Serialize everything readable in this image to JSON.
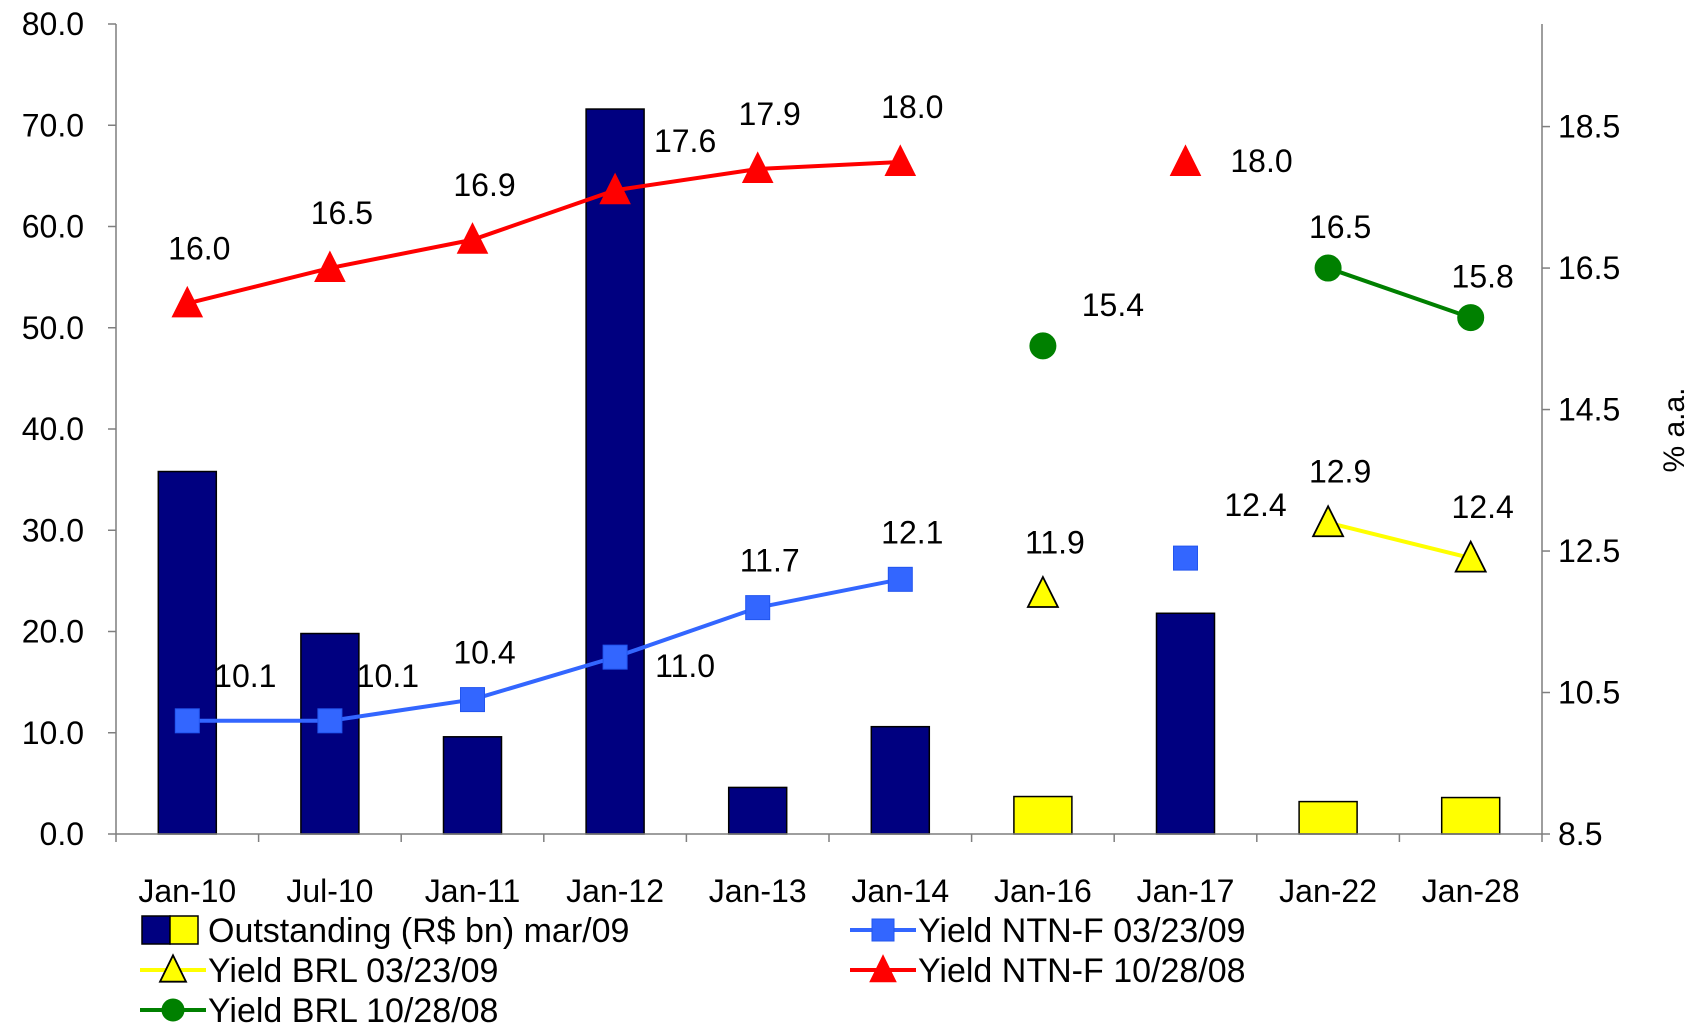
{
  "chart_data": {
    "type": "bar",
    "categories": [
      "Jan-10",
      "Jul-10",
      "Jan-11",
      "Jan-12",
      "Jan-13",
      "Jan-14",
      "Jan-16",
      "Jan-17",
      "Jan-22",
      "Jan-28"
    ],
    "left_axis": {
      "ylim": [
        0,
        80
      ],
      "ticks": [
        "0.0",
        "10.0",
        "20.0",
        "30.0",
        "40.0",
        "50.0",
        "60.0",
        "70.0",
        "80.0"
      ]
    },
    "right_axis": {
      "label": "% a.a.",
      "ylim": [
        8.5,
        19.95
      ],
      "ticks": [
        "8.5",
        "10.5",
        "12.5",
        "14.5",
        "16.5",
        "18.5"
      ]
    },
    "bars": {
      "name": "Outstanding (R$ bn) mar/09",
      "values": [
        35.8,
        19.8,
        9.6,
        71.6,
        4.6,
        10.6,
        3.7,
        21.8,
        3.2,
        3.6
      ],
      "colors": [
        "#000080",
        "#000080",
        "#000080",
        "#000080",
        "#000080",
        "#000080",
        "#FFFF00",
        "#000080",
        "#FFFF00",
        "#FFFF00"
      ]
    },
    "series": [
      {
        "name": "Yield NTN-F 03/23/09",
        "color": "#3366FF",
        "marker": "square",
        "segments": [
          [
            0,
            1,
            2,
            3,
            4,
            5
          ]
        ],
        "values": [
          10.1,
          10.1,
          10.4,
          11.0,
          11.7,
          12.1,
          null,
          12.4,
          null,
          null
        ],
        "labels": [
          "10.1",
          "10.1",
          "10.4",
          "11.0",
          "11.7",
          "12.1",
          null,
          "12.4",
          null,
          null
        ]
      },
      {
        "name": "Yield BRL 03/23/09",
        "color": "#FFFF00",
        "marker": "triangle",
        "segments": [
          [
            8,
            9
          ]
        ],
        "values": [
          null,
          null,
          null,
          null,
          null,
          null,
          11.9,
          null,
          12.9,
          12.4
        ],
        "labels": [
          null,
          null,
          null,
          null,
          null,
          null,
          "11.9",
          null,
          "12.9",
          "12.4"
        ]
      },
      {
        "name": "Yield NTN-F 10/28/08",
        "color": "#FF0000",
        "marker": "triangle",
        "segments": [
          [
            0,
            1,
            2,
            3,
            4,
            5
          ]
        ],
        "values": [
          16.0,
          16.5,
          16.9,
          17.6,
          17.9,
          18.0,
          null,
          18.0,
          null,
          null
        ],
        "labels": [
          "16.0",
          "16.5",
          "16.9",
          "17.6",
          "17.9",
          "18.0",
          null,
          "18.0",
          null,
          null
        ]
      },
      {
        "name": "Yield BRL 10/28/08",
        "color": "#008000",
        "marker": "circle",
        "segments": [
          [
            8,
            9
          ]
        ],
        "values": [
          null,
          null,
          null,
          null,
          null,
          null,
          15.4,
          null,
          16.5,
          15.8
        ],
        "labels": [
          null,
          null,
          null,
          null,
          null,
          null,
          "15.4",
          null,
          "16.5",
          "15.8"
        ]
      }
    ],
    "legend": {
      "placement": "bottom",
      "entries": [
        {
          "label": "Outstanding (R$ bn) mar/09",
          "key": "bars"
        },
        {
          "label": "Yield NTN-F 03/23/09",
          "key": "series.0"
        },
        {
          "label": "Yield BRL 03/23/09",
          "key": "series.1"
        },
        {
          "label": "Yield NTN-F 10/28/08",
          "key": "series.2"
        },
        {
          "label": "Yield BRL 10/28/08",
          "key": "series.3"
        }
      ]
    },
    "grid": false
  }
}
